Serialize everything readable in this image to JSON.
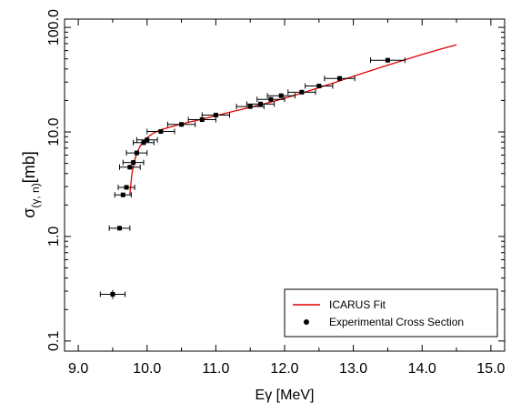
{
  "chart_data": {
    "type": "scatter",
    "xlabel": "Eγ [MeV]",
    "ylabel_main": "σ",
    "ylabel_sub": "(γ, n)",
    "ylabel_unit": "[mb]",
    "xlim": [
      8.8,
      15.2
    ],
    "ylim": [
      0.08,
      120
    ],
    "y_scale": "log",
    "grid": false,
    "legend_position": "bottom-right",
    "x_ticks": [
      "9.0",
      "10.0",
      "11.0",
      "12.0",
      "13.0",
      "14.0",
      "15.0"
    ],
    "y_ticks": [
      "0.1",
      "1.0",
      "10.0",
      "100.0"
    ],
    "series": [
      {
        "name": "ICARUS Fit",
        "kind": "line",
        "color": "#e00000",
        "x": [
          9.75,
          9.78,
          9.82,
          9.86,
          9.9,
          9.95,
          10.0,
          10.1,
          10.2,
          10.35,
          10.5,
          10.75,
          11.0,
          11.25,
          11.5,
          11.75,
          12.0,
          12.25,
          12.5,
          12.75,
          13.0,
          13.25,
          13.5,
          13.75,
          14.0,
          14.25,
          14.5
        ],
        "y": [
          2.5,
          4.0,
          5.4,
          6.5,
          7.3,
          8.2,
          8.8,
          9.8,
          10.5,
          11.2,
          11.9,
          13.0,
          14.3,
          15.7,
          17.2,
          18.9,
          21.0,
          23.5,
          26.5,
          30.0,
          34.0,
          38.5,
          43.5,
          49.0,
          55.0,
          61.5,
          68.0
        ]
      },
      {
        "name": "Experimental Cross Section",
        "kind": "points",
        "color": "#000000",
        "points": [
          {
            "x": 9.5,
            "y": 0.28,
            "xerr": 0.18,
            "yerr_rel": 0.1
          },
          {
            "x": 9.6,
            "y": 1.2,
            "xerr": 0.15,
            "yerr_rel": 0.05
          },
          {
            "x": 9.65,
            "y": 2.5,
            "xerr": 0.12,
            "yerr_rel": 0.05
          },
          {
            "x": 9.7,
            "y": 2.95,
            "xerr": 0.12,
            "yerr_rel": 0.05
          },
          {
            "x": 9.75,
            "y": 4.6,
            "xerr": 0.15,
            "yerr_rel": 0.05
          },
          {
            "x": 9.8,
            "y": 5.1,
            "xerr": 0.15,
            "yerr_rel": 0.05
          },
          {
            "x": 9.85,
            "y": 6.3,
            "xerr": 0.15,
            "yerr_rel": 0.05
          },
          {
            "x": 9.95,
            "y": 7.9,
            "xerr": 0.15,
            "yerr_rel": 0.05
          },
          {
            "x": 10.0,
            "y": 8.4,
            "xerr": 0.15,
            "yerr_rel": 0.05
          },
          {
            "x": 10.2,
            "y": 10.1,
            "xerr": 0.2,
            "yerr_rel": 0.05
          },
          {
            "x": 10.5,
            "y": 11.8,
            "xerr": 0.2,
            "yerr_rel": 0.05
          },
          {
            "x": 10.8,
            "y": 13.1,
            "xerr": 0.2,
            "yerr_rel": 0.05
          },
          {
            "x": 11.0,
            "y": 14.5,
            "xerr": 0.2,
            "yerr_rel": 0.05
          },
          {
            "x": 11.5,
            "y": 17.5,
            "xerr": 0.2,
            "yerr_rel": 0.05
          },
          {
            "x": 11.65,
            "y": 18.5,
            "xerr": 0.2,
            "yerr_rel": 0.05
          },
          {
            "x": 11.8,
            "y": 20.5,
            "xerr": 0.2,
            "yerr_rel": 0.05
          },
          {
            "x": 11.95,
            "y": 22.2,
            "xerr": 0.2,
            "yerr_rel": 0.05
          },
          {
            "x": 12.25,
            "y": 24.0,
            "xerr": 0.2,
            "yerr_rel": 0.05
          },
          {
            "x": 12.5,
            "y": 27.5,
            "xerr": 0.2,
            "yerr_rel": 0.05
          },
          {
            "x": 12.8,
            "y": 32.5,
            "xerr": 0.22,
            "yerr_rel": 0.05
          },
          {
            "x": 13.5,
            "y": 48.5,
            "xerr": 0.25,
            "yerr_rel": 0.05
          }
        ]
      }
    ]
  }
}
